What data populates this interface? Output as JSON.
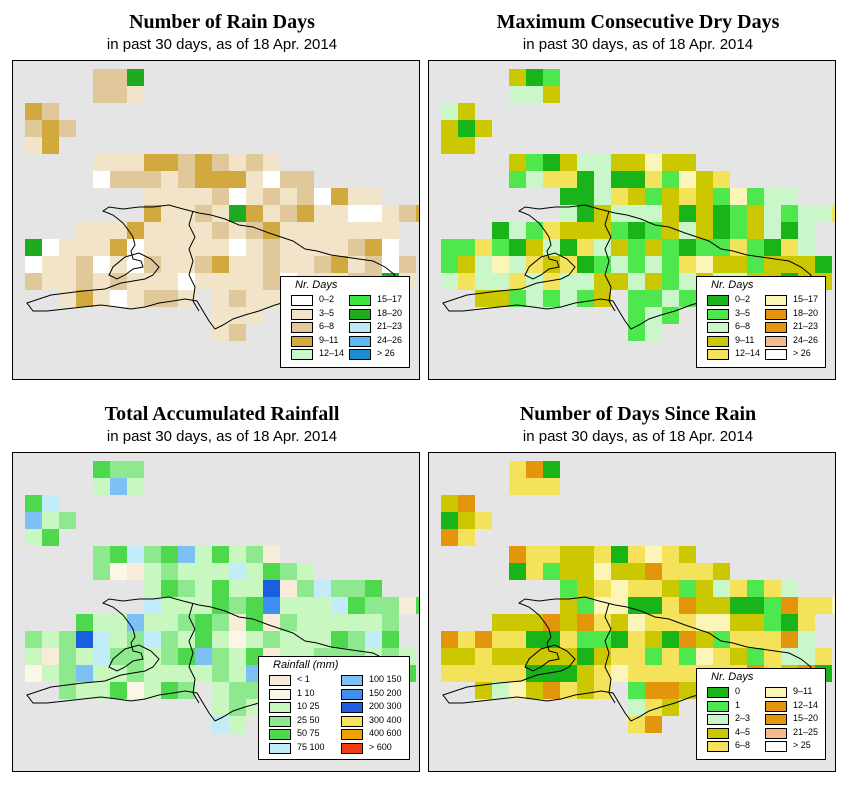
{
  "panels": [
    {
      "title": "Number of Rain Days",
      "subtitle": "in past 30 days, as of  18 Apr. 2014",
      "legend": {
        "title": "Nr. Days",
        "items": [
          {
            "label": "0–2",
            "color": "#ffffff"
          },
          {
            "label": "3–5",
            "color": "#f2e4c9"
          },
          {
            "label": "6–8",
            "color": "#e0c89a"
          },
          {
            "label": "9–11",
            "color": "#d2a93f"
          },
          {
            "label": "12–14",
            "color": "#c9f7c9"
          },
          {
            "label": "15–17",
            "color": "#3ce63c"
          },
          {
            "label": "18–20",
            "color": "#1faa1f"
          },
          {
            "label": "21–23",
            "color": "#bde9f7"
          },
          {
            "label": "24–26",
            "color": "#5cb8ee"
          },
          {
            "label": "> 26",
            "color": "#1a8ed0"
          }
        ]
      },
      "palette": [
        "#ffffff",
        "#f2e4c9",
        "#e0c89a",
        "#d2a93f",
        "#c9f7c9",
        "#3ce63c",
        "#1faa1f",
        "#bde9f7",
        "#5cb8ee"
      ]
    },
    {
      "title": "Maximum Consecutive Dry Days",
      "subtitle": "in past 30 days, as of  18 Apr. 2014",
      "legend": {
        "title": "Nr. Days",
        "items": [
          {
            "label": "0–2",
            "color": "#19b419"
          },
          {
            "label": "3–5",
            "color": "#4ee84e"
          },
          {
            "label": "6–8",
            "color": "#c9f7c9"
          },
          {
            "label": "9–11",
            "color": "#cbc700"
          },
          {
            "label": "12–14",
            "color": "#f4e35a"
          },
          {
            "label": "15–17",
            "color": "#fbf6b8"
          },
          {
            "label": "18–20",
            "color": "#e3950c"
          },
          {
            "label": "21–23",
            "color": "#e3950c"
          },
          {
            "label": "24–26",
            "color": "#f6b98e"
          },
          {
            "label": "> 26",
            "color": "#ffffff"
          }
        ]
      },
      "palette": [
        "#19b419",
        "#4ee84e",
        "#c9f7c9",
        "#cbc700",
        "#f4e35a",
        "#fbf6b8",
        "#e3950c",
        "#f6b98e"
      ]
    },
    {
      "title": "Total Accumulated Rainfall",
      "subtitle": "in past 30 days, as of  18 Apr. 2014",
      "legend": {
        "title": "Rainfall (mm)",
        "items": [
          {
            "label": "< 1",
            "color": "#f7ecd7"
          },
          {
            "label": "1   10",
            "color": "#fbf6e6"
          },
          {
            "label": "10   25",
            "color": "#c9f7c0"
          },
          {
            "label": "25   50",
            "color": "#8ee88e"
          },
          {
            "label": "50   75",
            "color": "#4ed84e"
          },
          {
            "label": "75  100",
            "color": "#c2ecf7"
          },
          {
            "label": "100  150",
            "color": "#7cc0f4"
          },
          {
            "label": "150  200",
            "color": "#3f8ef0"
          },
          {
            "label": "200  300",
            "color": "#1a5fe0"
          },
          {
            "label": "300  400",
            "color": "#f7e35a"
          },
          {
            "label": "400  600",
            "color": "#f0a000"
          },
          {
            "label": "> 600",
            "color": "#f03c14"
          }
        ]
      },
      "palette": [
        "#f7ecd7",
        "#fbf6e6",
        "#c9f7c0",
        "#8ee88e",
        "#4ed84e",
        "#c2ecf7",
        "#7cc0f4",
        "#3f8ef0",
        "#1a5fe0",
        "#f7e35a"
      ]
    },
    {
      "title": "Number of Days Since Rain",
      "subtitle": "in past 30 days, as of  18 Apr. 2014",
      "legend": {
        "title": "Nr. Days",
        "items": [
          {
            "label": "0",
            "color": "#19b419"
          },
          {
            "label": "1",
            "color": "#4ee84e"
          },
          {
            "label": "2–3",
            "color": "#c9f7c9"
          },
          {
            "label": "4–5",
            "color": "#cbc700"
          },
          {
            "label": "6–8",
            "color": "#f4e35a"
          },
          {
            "label": "9–11",
            "color": "#fbf6b8"
          },
          {
            "label": "12–14",
            "color": "#e3950c"
          },
          {
            "label": "15–20",
            "color": "#e3950c"
          },
          {
            "label": "21–25",
            "color": "#f6b98e"
          },
          {
            "label": "> 25",
            "color": "#ffffff"
          }
        ]
      },
      "palette": [
        "#19b419",
        "#4ee84e",
        "#c9f7c9",
        "#cbc700",
        "#f4e35a",
        "#fbf6b8",
        "#e3950c",
        "#f6b98e"
      ]
    }
  ]
}
